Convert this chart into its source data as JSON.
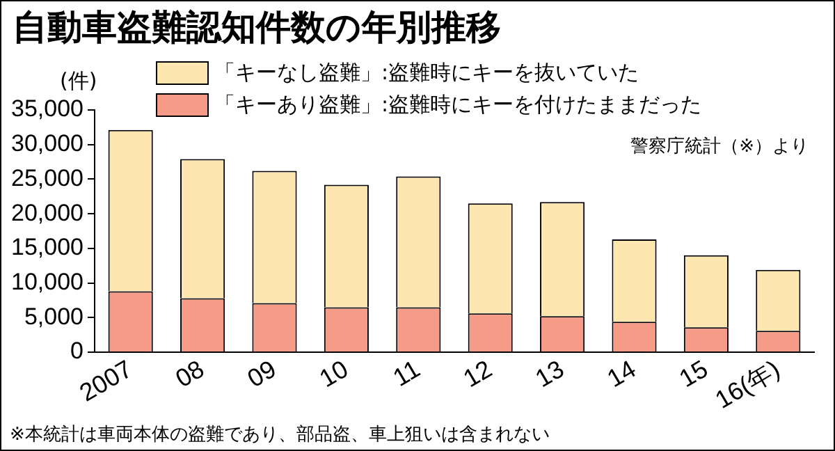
{
  "chart_data": {
    "type": "bar",
    "title": "自動車盗難認知件数の年別推移",
    "ylabel": "(件)",
    "stacked": true,
    "legend": "top right",
    "grid": false,
    "categories": [
      "2007",
      "08",
      "09",
      "10",
      "11",
      "12",
      "13",
      "14",
      "15",
      "16(年)"
    ],
    "series": [
      {
        "name": "「キーあり盗難」:盗難時にキーを付けたままだった",
        "color": "#f59b88",
        "values": [
          8800,
          7800,
          7100,
          6500,
          6500,
          5600,
          5200,
          4400,
          3600,
          3100
        ]
      },
      {
        "name": "「キーなし盗難」:盗難時にキーを抜いていた",
        "color": "#fde6b0",
        "values": [
          23300,
          20100,
          19100,
          17700,
          18900,
          15900,
          16500,
          11900,
          10400,
          8800
        ]
      }
    ],
    "ylim": [
      0,
      35000
    ],
    "yticks": [
      {
        "value": 0,
        "label": "0"
      },
      {
        "value": 5000,
        "label": "5,000"
      },
      {
        "value": 10000,
        "label": "10,000"
      },
      {
        "value": 15000,
        "label": "15,000"
      },
      {
        "value": 20000,
        "label": "20,000"
      },
      {
        "value": 25000,
        "label": "25,000"
      },
      {
        "value": 30000,
        "label": "30,000"
      },
      {
        "value": 35000,
        "label": "35,000"
      }
    ],
    "annotations": [
      "警察庁統計（※）より",
      "※本統計は車両本体の盗難であり、部品盗、車上狙いは含まれない"
    ]
  }
}
